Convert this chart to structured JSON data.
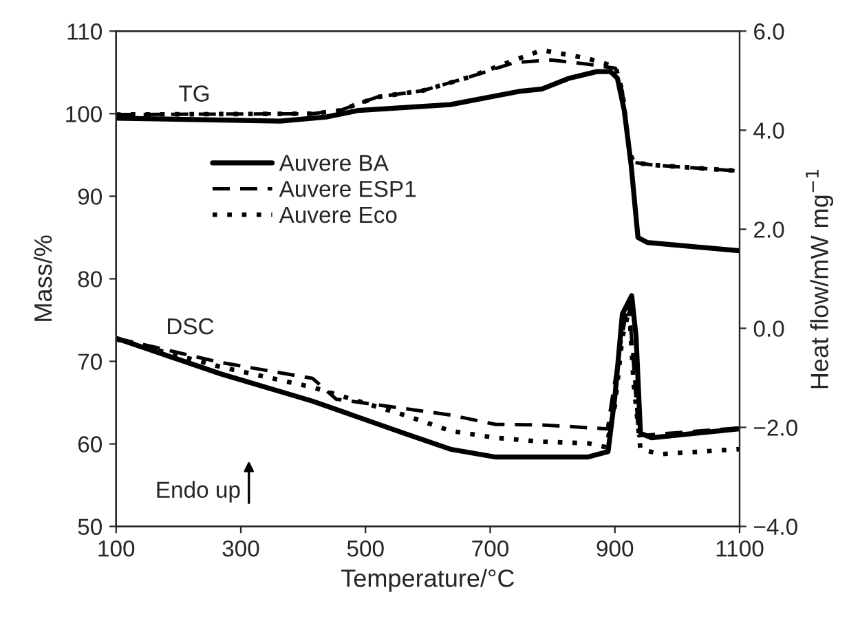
{
  "chart_data": {
    "type": "line",
    "xlabel": "Temperature/°C",
    "ylabel": "Mass/%",
    "y2label": "Heat flow/mW mg$^{−1}$",
    "xlim": [
      100,
      1100
    ],
    "xticks": [
      100,
      300,
      500,
      700,
      900,
      1100
    ],
    "ylim": [
      50,
      110
    ],
    "yticks": [
      50,
      60,
      70,
      80,
      90,
      100,
      110
    ],
    "y2lim": [
      -4,
      6
    ],
    "y2ticks": [
      {
        "value": -4,
        "label": "−4.0"
      },
      {
        "value": -2,
        "label": "−2.0"
      },
      {
        "value": 0,
        "label": "0.0"
      },
      {
        "value": 2,
        "label": "2.0"
      },
      {
        "value": 4,
        "label": "4.0"
      },
      {
        "value": 6,
        "label": "6.0"
      }
    ],
    "legend": "upper left",
    "annotations": [
      "TG",
      "DSC",
      "Endo up"
    ],
    "series": [
      {
        "name": "Auvere BA",
        "color": "#000000",
        "line_style": "solid",
        "axis": "y",
        "x": [
          100,
          363,
          437,
          489,
          636,
          746,
          783,
          827,
          871,
          893,
          904,
          915,
          926,
          937,
          952,
          1099
        ],
        "values": [
          99.45,
          99.1,
          99.6,
          100.4,
          101.1,
          102.7,
          103.0,
          104.3,
          105.1,
          105.1,
          104.3,
          100.4,
          93.8,
          85.0,
          84.4,
          83.4
        ]
      },
      {
        "name": "Auvere ESP1",
        "color": "#000000",
        "line_style": "dashed",
        "axis": "y",
        "x": [
          100,
          415,
          459,
          518,
          592,
          665,
          739,
          798,
          856,
          901,
          912,
          923,
          930,
          959,
          1092
        ],
        "values": [
          99.9,
          100.0,
          100.4,
          102.0,
          102.8,
          104.4,
          106.2,
          106.5,
          106.0,
          105.5,
          102.7,
          95.5,
          94.1,
          93.8,
          93.1
        ]
      },
      {
        "name": "Auvere Eco",
        "color": "#000000",
        "line_style": "dotted",
        "axis": "y",
        "x": [
          100,
          415,
          459,
          518,
          592,
          665,
          739,
          783,
          856,
          901,
          912,
          923,
          930,
          959,
          1092
        ],
        "values": [
          99.9,
          100.0,
          100.4,
          102.0,
          102.8,
          104.4,
          106.5,
          107.7,
          106.7,
          105.7,
          102.7,
          95.5,
          94.1,
          93.8,
          93.1
        ]
      },
      {
        "color": "#000000",
        "line_style": "solid",
        "axis": "y2",
        "x": [
          100,
          268,
          415,
          562,
          636,
          709,
          783,
          856,
          889,
          900,
          912,
          927,
          934,
          941,
          959,
          1099
        ],
        "values": [
          -0.2,
          -0.92,
          -1.47,
          -2.12,
          -2.44,
          -2.6,
          -2.6,
          -2.6,
          -2.49,
          -1.38,
          0.29,
          0.66,
          -0.18,
          -2.12,
          -2.21,
          -2.03
        ]
      },
      {
        "color": "#000000",
        "line_style": "dashed",
        "axis": "y2",
        "x": [
          100,
          268,
          415,
          453,
          636,
          709,
          783,
          888,
          911,
          922,
          930,
          938,
          967,
          1099
        ],
        "values": [
          -0.2,
          -0.69,
          -1.01,
          -1.43,
          -1.75,
          -1.94,
          -1.95,
          -2.03,
          -0.18,
          0.56,
          -0.73,
          -2.17,
          -2.14,
          -2.01
        ]
      },
      {
        "color": "#000000",
        "line_style": "dotted",
        "axis": "y2",
        "x": [
          100,
          268,
          415,
          562,
          636,
          709,
          783,
          856,
          886,
          900,
          912,
          923,
          930,
          941,
          974,
          1099
        ],
        "values": [
          -0.22,
          -0.78,
          -1.19,
          -1.75,
          -2.07,
          -2.21,
          -2.29,
          -2.32,
          -2.4,
          -1.56,
          -0.18,
          0.38,
          -1.1,
          -2.44,
          -2.54,
          -2.44
        ]
      }
    ]
  }
}
